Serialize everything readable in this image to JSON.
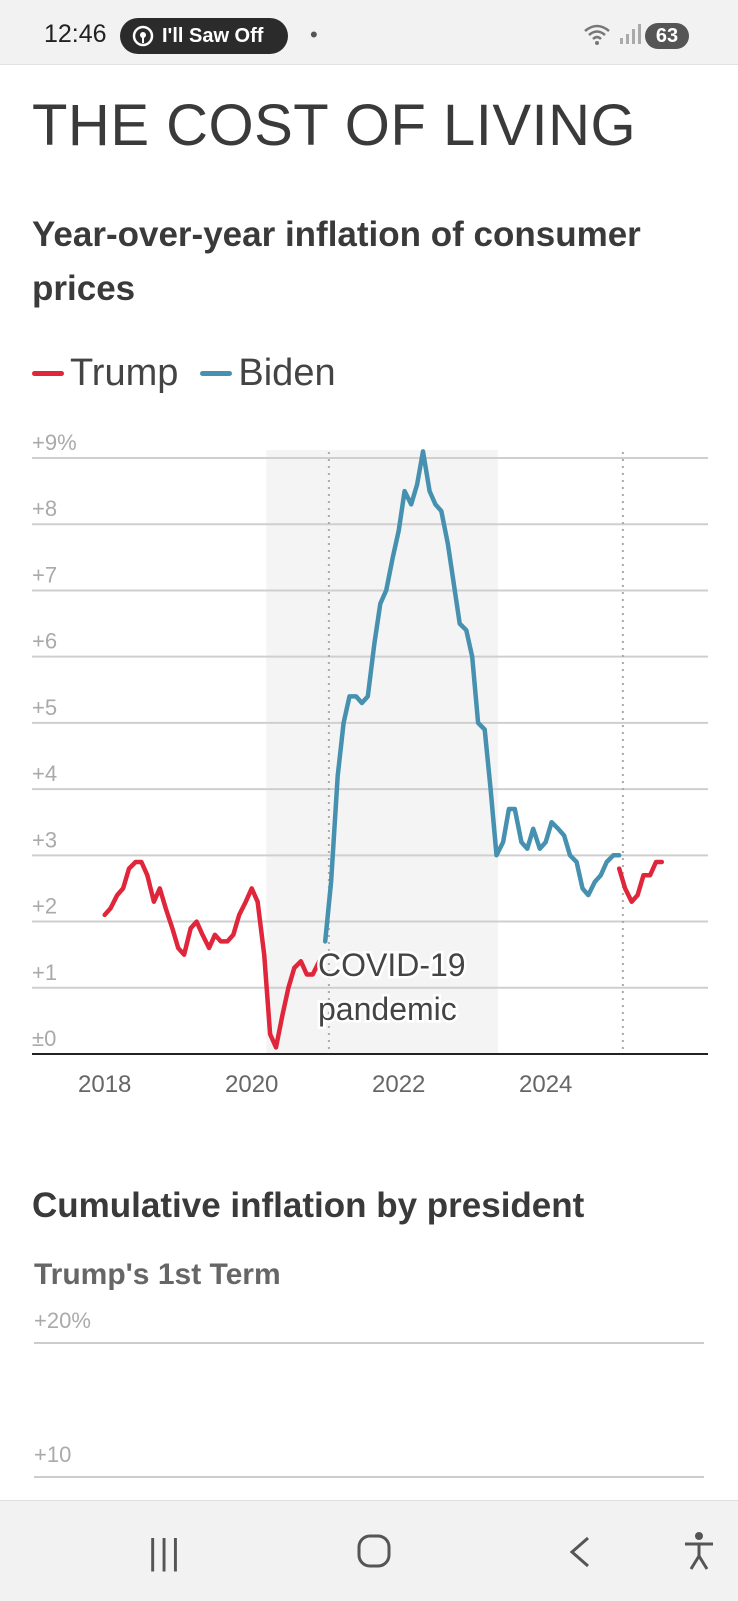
{
  "status_bar": {
    "time": "12:46",
    "media_label": "I'll Saw Off",
    "dot": "•",
    "battery": "63",
    "icons": {
      "media": "radio-icon",
      "wifi": "wifi-icon",
      "signal": "signal-icon"
    }
  },
  "page": {
    "title": "THE COST OF LIVING",
    "chart_title": "Year-over-year inflation of consumer prices",
    "legend": [
      {
        "label": "Trump",
        "color": "#e0263a"
      },
      {
        "label": "Biden",
        "color": "#4691b0"
      }
    ]
  },
  "chart_data": {
    "type": "line",
    "title": "Year-over-year inflation of consumer prices",
    "xlabel": "",
    "ylabel": "",
    "x_ticks": [
      "2018",
      "2020",
      "2022",
      "2024"
    ],
    "y_ticks": [
      "±0",
      "+1",
      "+2",
      "+3",
      "+4",
      "+5",
      "+6",
      "+7",
      "+8",
      "+9%"
    ],
    "ylim": [
      0,
      9
    ],
    "xlim": [
      2017.0,
      2025.9
    ],
    "grid": true,
    "annotation": {
      "text": [
        "COVID-19",
        "pandemic"
      ],
      "shaded_range": [
        2020.2,
        2023.35
      ]
    },
    "vertical_markers": [
      2021.05,
      2025.05
    ],
    "series": [
      {
        "name": "Trump",
        "color": "#e0263a",
        "x": [
          2018.0,
          2018.08,
          2018.17,
          2018.25,
          2018.33,
          2018.42,
          2018.5,
          2018.58,
          2018.67,
          2018.75,
          2018.83,
          2018.92,
          2019.0,
          2019.08,
          2019.17,
          2019.25,
          2019.33,
          2019.42,
          2019.5,
          2019.58,
          2019.67,
          2019.75,
          2019.83,
          2019.92,
          2020.0,
          2020.08,
          2020.17,
          2020.25,
          2020.33,
          2020.42,
          2020.5,
          2020.58,
          2020.67,
          2020.75,
          2020.83,
          2020.92
        ],
        "values": [
          2.1,
          2.2,
          2.4,
          2.5,
          2.8,
          2.9,
          2.9,
          2.7,
          2.3,
          2.5,
          2.2,
          1.9,
          1.6,
          1.5,
          1.9,
          2.0,
          1.8,
          1.6,
          1.8,
          1.7,
          1.7,
          1.8,
          2.1,
          2.3,
          2.5,
          2.3,
          1.5,
          0.3,
          0.1,
          0.6,
          1.0,
          1.3,
          1.4,
          1.2,
          1.2,
          1.4
        ]
      },
      {
        "name": "Biden",
        "color": "#4691b0",
        "x": [
          2021.0,
          2021.08,
          2021.17,
          2021.25,
          2021.33,
          2021.42,
          2021.5,
          2021.58,
          2021.67,
          2021.75,
          2021.83,
          2021.92,
          2022.0,
          2022.08,
          2022.17,
          2022.25,
          2022.33,
          2022.42,
          2022.5,
          2022.58,
          2022.67,
          2022.75,
          2022.83,
          2022.92,
          2023.0,
          2023.08,
          2023.17,
          2023.25,
          2023.33,
          2023.42,
          2023.5,
          2023.58,
          2023.67,
          2023.75,
          2023.83,
          2023.92,
          2024.0,
          2024.08,
          2024.17,
          2024.25,
          2024.33,
          2024.42,
          2024.5,
          2024.58,
          2024.67,
          2024.75,
          2024.83,
          2024.92,
          2025.0
        ],
        "values": [
          1.7,
          2.6,
          4.2,
          5.0,
          5.4,
          5.4,
          5.3,
          5.4,
          6.2,
          6.8,
          7.0,
          7.5,
          7.9,
          8.5,
          8.3,
          8.6,
          9.1,
          8.5,
          8.3,
          8.2,
          7.7,
          7.1,
          6.5,
          6.4,
          6.0,
          5.0,
          4.9,
          4.0,
          3.0,
          3.2,
          3.7,
          3.7,
          3.2,
          3.1,
          3.4,
          3.1,
          3.2,
          3.5,
          3.4,
          3.3,
          3.0,
          2.9,
          2.5,
          2.4,
          2.6,
          2.7,
          2.9,
          3.0,
          3.0
        ]
      },
      {
        "name": "Trump",
        "color": "#e0263a",
        "x": [
          2025.0,
          2025.08,
          2025.17,
          2025.25,
          2025.33,
          2025.42,
          2025.5,
          2025.58
        ],
        "values": [
          2.8,
          2.5,
          2.3,
          2.4,
          2.7,
          2.7,
          2.9,
          2.9
        ]
      }
    ]
  },
  "cumulative": {
    "title": "Cumulative inflation by president",
    "subtitle": "Trump's 1st Term",
    "y_ticks": [
      "+20%",
      "+10"
    ]
  },
  "nav_bar": {
    "recent": "|||",
    "home": "○",
    "back": "<",
    "accessibility": "accessibility-icon"
  }
}
